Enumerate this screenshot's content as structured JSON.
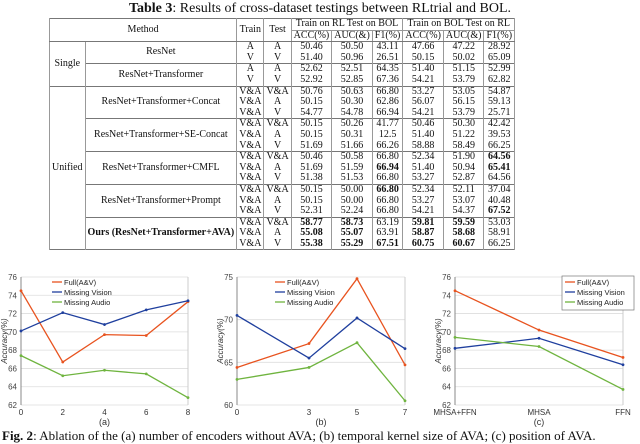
{
  "table": {
    "label": "Table 3",
    "caption": ": Results of cross-dataset testings between RLtrial and BOL.",
    "headers": {
      "method": "Method",
      "train": "Train",
      "test": "Test",
      "group1": "Train on RL Test on BOL",
      "group2": "Train on BOL Test on RL",
      "metrics": [
        "ACC(%)",
        "AUC(&)",
        "F1(%)",
        "ACC(%)",
        "AUC(&)",
        "F1(%)"
      ]
    },
    "sections": [
      {
        "name": "Single",
        "methods": [
          {
            "name": "ResNet",
            "bold_name": false,
            "rows": [
              {
                "train": "A",
                "test": "A",
                "values": [
                  "50.46",
                  "50.50",
                  "43.11",
                  "47.66",
                  "47.22",
                  "28.92"
                ],
                "bold": []
              },
              {
                "train": "V",
                "test": "V",
                "values": [
                  "51.40",
                  "50.96",
                  "26.51",
                  "50.15",
                  "50.02",
                  "65.09"
                ],
                "bold": []
              }
            ]
          },
          {
            "name": "ResNet+Transformer",
            "bold_name": false,
            "rows": [
              {
                "train": "A",
                "test": "A",
                "values": [
                  "52.62",
                  "52.51",
                  "64.35",
                  "51.40",
                  "51.15",
                  "52.99"
                ],
                "bold": []
              },
              {
                "train": "V",
                "test": "V",
                "values": [
                  "52.92",
                  "52.85",
                  "67.36",
                  "54.21",
                  "53.79",
                  "62.82"
                ],
                "bold": []
              }
            ]
          }
        ]
      },
      {
        "name": "Unified",
        "methods": [
          {
            "name": "ResNet+Transformer+Concat",
            "bold_name": false,
            "rows": [
              {
                "train": "V&A",
                "test": "V&A",
                "values": [
                  "50.76",
                  "50.63",
                  "66.80",
                  "53.27",
                  "53.05",
                  "54.87"
                ],
                "bold": []
              },
              {
                "train": "V&A",
                "test": "A",
                "values": [
                  "50.15",
                  "50.30",
                  "62.86",
                  "56.07",
                  "56.15",
                  "59.13"
                ],
                "bold": []
              },
              {
                "train": "V&A",
                "test": "V",
                "values": [
                  "54.77",
                  "54.78",
                  "66.94",
                  "54.21",
                  "53.79",
                  "25.71"
                ],
                "bold": []
              }
            ]
          },
          {
            "name": "ResNet+Transformer+SE-Concat",
            "bold_name": false,
            "rows": [
              {
                "train": "V&A",
                "test": "V&A",
                "values": [
                  "50.15",
                  "50.26",
                  "41.77",
                  "50.46",
                  "50.30",
                  "42.42"
                ],
                "bold": []
              },
              {
                "train": "V&A",
                "test": "A",
                "values": [
                  "50.15",
                  "50.31",
                  "12.5",
                  "51.40",
                  "51.22",
                  "39.53"
                ],
                "bold": []
              },
              {
                "train": "V&A",
                "test": "V",
                "values": [
                  "51.69",
                  "51.66",
                  "66.26",
                  "58.88",
                  "58.49",
                  "66.25"
                ],
                "bold": []
              }
            ]
          },
          {
            "name": "ResNet+Transformer+CMFL",
            "bold_name": false,
            "rows": [
              {
                "train": "V&A",
                "test": "V&A",
                "values": [
                  "50.46",
                  "50.58",
                  "66.80",
                  "52.34",
                  "51.90",
                  "64.56"
                ],
                "bold": [
                  5
                ]
              },
              {
                "train": "V&A",
                "test": "A",
                "values": [
                  "51.69",
                  "51.59",
                  "66.94",
                  "51.40",
                  "50.94",
                  "65.41"
                ],
                "bold": [
                  2,
                  5
                ]
              },
              {
                "train": "V&A",
                "test": "V",
                "values": [
                  "51.38",
                  "51.53",
                  "66.80",
                  "53.27",
                  "52.87",
                  "64.56"
                ],
                "bold": []
              }
            ]
          },
          {
            "name": "ResNet+Transformer+Prompt",
            "bold_name": false,
            "rows": [
              {
                "train": "V&A",
                "test": "V&A",
                "values": [
                  "50.15",
                  "50.00",
                  "66.80",
                  "52.34",
                  "52.11",
                  "37.04"
                ],
                "bold": [
                  2
                ]
              },
              {
                "train": "V&A",
                "test": "A",
                "values": [
                  "50.15",
                  "50.00",
                  "66.80",
                  "53.27",
                  "53.07",
                  "40.48"
                ],
                "bold": []
              },
              {
                "train": "V&A",
                "test": "V",
                "values": [
                  "52.31",
                  "52.24",
                  "66.80",
                  "54.21",
                  "54.37",
                  "67.52"
                ],
                "bold": [
                  5
                ]
              }
            ]
          },
          {
            "name": "Ours (ResNet+Transformer+AVA)",
            "bold_name": true,
            "rows": [
              {
                "train": "V&A",
                "test": "V&A",
                "values": [
                  "58.77",
                  "58.73",
                  "63.19",
                  "59.81",
                  "59.59",
                  "53.03"
                ],
                "bold": [
                  0,
                  1,
                  3,
                  4
                ]
              },
              {
                "train": "V&A",
                "test": "A",
                "values": [
                  "55.08",
                  "55.07",
                  "63.91",
                  "58.87",
                  "58.68",
                  "58.91"
                ],
                "bold": [
                  0,
                  1,
                  3,
                  4
                ]
              },
              {
                "train": "V&A",
                "test": "V",
                "values": [
                  "55.38",
                  "55.29",
                  "67.51",
                  "60.75",
                  "60.67",
                  "66.25"
                ],
                "bold": [
                  0,
                  1,
                  2,
                  3,
                  4
                ]
              }
            ]
          }
        ]
      }
    ]
  },
  "chart_data": [
    {
      "type": "line",
      "sublabel": "(a)",
      "ylabel": "Accuracy(%)",
      "x": [
        0,
        2,
        4,
        6,
        8
      ],
      "xticks": [
        "0",
        "2",
        "4",
        "6",
        "8"
      ],
      "ylim": [
        62,
        76
      ],
      "yticks": [
        62,
        64,
        66,
        68,
        70,
        72,
        74,
        76
      ],
      "legend": "top-left",
      "grid": true,
      "series": [
        {
          "name": "Full(A&V)",
          "color": "#e8531f",
          "values": [
            74.5,
            66.7,
            69.7,
            69.6,
            73.3
          ]
        },
        {
          "name": "Missing Vision",
          "color": "#1f3f9e",
          "values": [
            70.1,
            72.1,
            70.8,
            72.4,
            73.4
          ]
        },
        {
          "name": "Missing Audio",
          "color": "#6fb43f",
          "values": [
            67.4,
            65.2,
            65.8,
            65.4,
            62.8
          ]
        }
      ]
    },
    {
      "type": "line",
      "sublabel": "(b)",
      "ylabel": "Accuracy(%)",
      "x": [
        0,
        3,
        5,
        7
      ],
      "xticks": [
        "0",
        "3",
        "5",
        "7"
      ],
      "ylim": [
        60,
        75
      ],
      "yticks": [
        60,
        65,
        70,
        75
      ],
      "legend": "top-left",
      "grid": true,
      "series": [
        {
          "name": "Full(A&V)",
          "color": "#e8531f",
          "values": [
            64.4,
            67.2,
            74.8,
            64.7
          ]
        },
        {
          "name": "Missing Vision",
          "color": "#1f3f9e",
          "values": [
            70.5,
            65.5,
            70.2,
            66.6
          ]
        },
        {
          "name": "Missing Audio",
          "color": "#6fb43f",
          "values": [
            63.0,
            64.4,
            67.3,
            60.5
          ]
        }
      ]
    },
    {
      "type": "line",
      "sublabel": "(c)",
      "ylabel": "Accuracy(%)",
      "categories": [
        "MHSA+FFN",
        "MHSA",
        "FFN"
      ],
      "ylim": [
        62,
        76
      ],
      "yticks": [
        62,
        64,
        66,
        68,
        70,
        72,
        74,
        76
      ],
      "legend": "top-right",
      "grid": true,
      "series": [
        {
          "name": "Full(A&V)",
          "color": "#e8531f",
          "values": [
            74.5,
            70.2,
            67.2
          ]
        },
        {
          "name": "Missing Vision",
          "color": "#1f3f9e",
          "values": [
            68.2,
            69.3,
            66.4
          ]
        },
        {
          "name": "Missing Audio",
          "color": "#6fb43f",
          "values": [
            69.4,
            68.4,
            63.7
          ]
        }
      ]
    }
  ],
  "figure": {
    "label": "Fig. 2",
    "caption": ": Ablation of the (a) number of encoders without AVA; (b) temporal kernel size of AVA; (c) position of AVA."
  }
}
